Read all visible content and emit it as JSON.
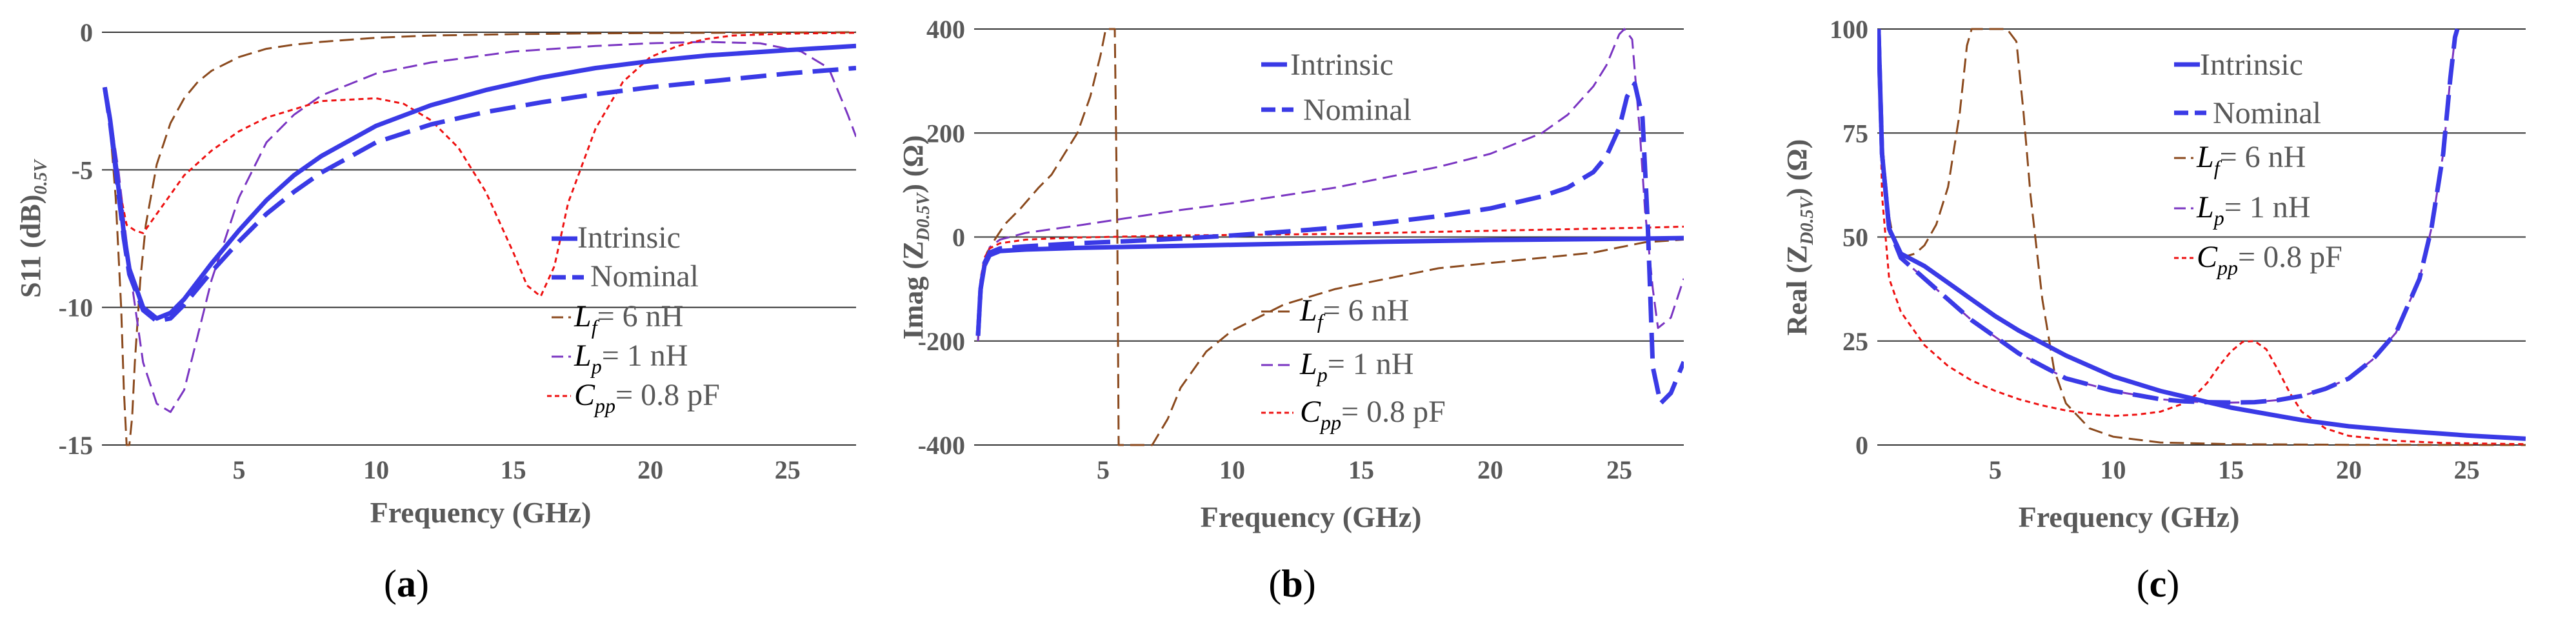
{
  "figure": {
    "colors": {
      "intrinsic": "#3a3ae6",
      "nominal": "#3a3ae6",
      "lf": "#8b4a1e",
      "lp": "#7a35c2",
      "cpp": "#ee1111",
      "grid": "#333333",
      "text": "#595959",
      "caption": "#000000"
    },
    "legend_labels": {
      "intrinsic": "Intrinsic",
      "nominal": "Nominal",
      "lf_sym": "L",
      "lf_sub": "f",
      "lf_val": "= 6 nH",
      "lp_sym": "L",
      "lp_sub": "p",
      "lp_val": "= 1 nH",
      "cpp_sym": "C",
      "cpp_sub": "pp",
      "cpp_val": "= 0.8 pF"
    }
  },
  "chart_data": [
    {
      "id": "a",
      "type": "line",
      "caption": "(a)",
      "caption_open": "(",
      "caption_letter": "a",
      "caption_close": ")",
      "xlabel": "Frequency (GHz)",
      "ylabel_main": "S11 (dB)",
      "ylabel_sub": "0.5V",
      "xlim": [
        0,
        27.5
      ],
      "ylim": [
        -15,
        0
      ],
      "xticks": [
        5,
        10,
        15,
        20,
        25
      ],
      "yticks": [
        0,
        -5,
        -10,
        -15
      ],
      "series": [
        {
          "key": "lf",
          "name": "Lf = 6 nH",
          "dash": "long",
          "width": 3,
          "x": [
            0.1,
            0.3,
            0.5,
            0.7,
            0.8,
            0.9,
            1.0,
            1.1,
            1.2,
            1.4,
            1.6,
            2.0,
            2.5,
            3,
            3.5,
            4,
            5,
            6,
            7,
            8,
            10,
            12,
            15,
            18,
            20,
            22,
            25,
            27.5
          ],
          "y": [
            -2,
            -3.5,
            -6,
            -10,
            -13,
            -15,
            -15,
            -14,
            -12,
            -9,
            -7,
            -4.8,
            -3.3,
            -2.4,
            -1.8,
            -1.4,
            -0.9,
            -0.6,
            -0.45,
            -0.35,
            -0.2,
            -0.12,
            -0.07,
            -0.04,
            -0.03,
            -0.02,
            -0.01,
            0
          ]
        },
        {
          "key": "lp",
          "name": "Lp = 1 nH",
          "dash": "long",
          "width": 3,
          "x": [
            0.1,
            0.3,
            0.6,
            1.0,
            1.5,
            2.0,
            2.5,
            3.0,
            3.5,
            4,
            5,
            6,
            7,
            8,
            10,
            12,
            15,
            18,
            20,
            22,
            24,
            25.5,
            26.5,
            27.2,
            27.5
          ],
          "y": [
            -2,
            -3,
            -5,
            -8.5,
            -12,
            -13.5,
            -13.8,
            -13,
            -11,
            -9,
            -6,
            -4,
            -3,
            -2.3,
            -1.5,
            -1.1,
            -0.7,
            -0.5,
            -0.4,
            -0.35,
            -0.4,
            -0.7,
            -1.3,
            -3,
            -3.8
          ]
        },
        {
          "key": "cpp",
          "name": "Cpp = 0.8 pF",
          "dash": "short",
          "width": 3,
          "x": [
            0.1,
            0.3,
            0.6,
            0.9,
            1.2,
            1.5,
            2.0,
            3,
            4,
            5,
            6,
            8,
            10,
            11,
            12,
            13,
            14,
            15,
            15.5,
            16,
            16.5,
            17,
            18,
            19,
            20,
            21,
            22,
            23,
            25,
            27.5
          ],
          "y": [
            -2,
            -3.5,
            -5.5,
            -7,
            -7.2,
            -7.3,
            -6.6,
            -5.2,
            -4.3,
            -3.6,
            -3.1,
            -2.5,
            -2.4,
            -2.6,
            -3.2,
            -4.2,
            -5.8,
            -8,
            -9.2,
            -9.6,
            -8.5,
            -6.2,
            -3.5,
            -1.8,
            -0.9,
            -0.5,
            -0.25,
            -0.12,
            -0.05,
            -0.02
          ]
        },
        {
          "key": "nominal",
          "name": "Nominal",
          "dash": "heavy",
          "width": 7,
          "x": [
            0.1,
            0.3,
            0.5,
            0.8,
            1.0,
            1.5,
            2.0,
            2.5,
            3,
            4,
            5,
            6,
            7,
            8,
            10,
            12,
            14,
            16,
            18,
            20,
            22,
            25,
            27.5
          ],
          "y": [
            -2,
            -3.3,
            -5,
            -7.5,
            -8.8,
            -10.1,
            -10.5,
            -10.4,
            -9.9,
            -8.7,
            -7.6,
            -6.6,
            -5.8,
            -5.1,
            -4,
            -3.35,
            -2.9,
            -2.55,
            -2.25,
            -2,
            -1.8,
            -1.5,
            -1.3
          ]
        },
        {
          "key": "intrinsic",
          "name": "Intrinsic",
          "dash": "solid",
          "width": 7,
          "x": [
            0.1,
            0.3,
            0.5,
            0.8,
            1.0,
            1.5,
            2.0,
            2.5,
            3,
            4,
            5,
            6,
            7,
            8,
            10,
            12,
            14,
            16,
            18,
            20,
            22,
            25,
            27.5
          ],
          "y": [
            -2,
            -3.2,
            -4.8,
            -7.3,
            -8.6,
            -10,
            -10.4,
            -10.2,
            -9.7,
            -8.4,
            -7.2,
            -6.1,
            -5.2,
            -4.5,
            -3.4,
            -2.65,
            -2.1,
            -1.65,
            -1.3,
            -1.05,
            -0.85,
            -0.65,
            -0.5
          ]
        }
      ]
    },
    {
      "id": "b",
      "type": "line",
      "caption": "(b)",
      "caption_open": "(",
      "caption_letter": "b",
      "caption_close": ")",
      "xlabel": "Frequency (GHz)",
      "ylabel_main": "Imag (Z",
      "ylabel_sub": "D0.5V",
      "ylabel_tail": ") (Ω)",
      "xlim": [
        0,
        27.5
      ],
      "ylim": [
        -400,
        400
      ],
      "xticks": [
        5,
        10,
        15,
        20,
        25
      ],
      "yticks": [
        400,
        200,
        0,
        -200,
        -400
      ],
      "series": [
        {
          "key": "lf",
          "name": "Lf = 6 nH",
          "dash": "long",
          "width": 3,
          "x": [
            0.15,
            0.2,
            0.3,
            0.5,
            0.8,
            1.2,
            1.8,
            2.5,
            3,
            3.5,
            4,
            4.5,
            4.9,
            5.1,
            5.3,
            5.45,
            5.55,
            5.6,
            5.7,
            6,
            6.5,
            6.9,
            7.5,
            8,
            9,
            10,
            12,
            14,
            16,
            18,
            20,
            22,
            24,
            25,
            26,
            27.5
          ],
          "y": [
            -200,
            -150,
            -80,
            -30,
            -5,
            25,
            55,
            95,
            120,
            160,
            200,
            270,
            350,
            400,
            400,
            400,
            0,
            -400,
            -400,
            -400,
            -400,
            -400,
            -350,
            -290,
            -220,
            -180,
            -130,
            -100,
            -80,
            -60,
            -50,
            -40,
            -30,
            -20,
            -10,
            -5
          ]
        },
        {
          "key": "lp",
          "name": "Lp = 1 nH",
          "dash": "long",
          "width": 3,
          "x": [
            0.15,
            0.25,
            0.4,
            0.6,
            1,
            2,
            4,
            6,
            8,
            10,
            12,
            14,
            16,
            18,
            20,
            22,
            23,
            24,
            24.5,
            25,
            25.2,
            25.5,
            25.8,
            26,
            26.3,
            26.5,
            27,
            27.5
          ],
          "y": [
            -200,
            -120,
            -60,
            -20,
            -5,
            8,
            22,
            37,
            52,
            65,
            80,
            95,
            115,
            135,
            160,
            200,
            235,
            290,
            330,
            390,
            400,
            380,
            200,
            50,
            -100,
            -175,
            -155,
            -80
          ]
        },
        {
          "key": "cpp",
          "name": "Cpp = 0.8 pF",
          "dash": "short",
          "width": 3,
          "x": [
            0.15,
            0.25,
            0.4,
            0.6,
            1,
            2,
            4,
            6,
            8,
            10,
            12,
            14,
            16,
            18,
            20,
            22,
            24,
            26,
            27.5
          ],
          "y": [
            -160,
            -80,
            -40,
            -22,
            -12,
            -5,
            -1,
            1,
            3,
            4,
            5,
            6,
            8,
            10,
            12,
            14,
            16,
            18,
            20
          ]
        },
        {
          "key": "nominal",
          "name": "Nominal",
          "dash": "heavy",
          "width": 7,
          "x": [
            0.15,
            0.25,
            0.4,
            0.6,
            1,
            2,
            4,
            6,
            8,
            10,
            12,
            14,
            16,
            18,
            20,
            22,
            23,
            24,
            24.5,
            25,
            25.3,
            25.6,
            25.9,
            26.1,
            26.3,
            26.6,
            27,
            27.5
          ],
          "y": [
            -190,
            -100,
            -50,
            -30,
            -22,
            -18,
            -12,
            -8,
            -3,
            3,
            10,
            18,
            28,
            40,
            55,
            78,
            95,
            125,
            155,
            210,
            270,
            295,
            230,
            30,
            -250,
            -320,
            -300,
            -240
          ]
        },
        {
          "key": "intrinsic",
          "name": "Intrinsic",
          "dash": "solid",
          "width": 7,
          "x": [
            0.15,
            0.25,
            0.4,
            0.6,
            1,
            2,
            4,
            6,
            8,
            10,
            12,
            14,
            16,
            18,
            20,
            22,
            24,
            26,
            27.5
          ],
          "y": [
            -190,
            -100,
            -55,
            -35,
            -27,
            -24,
            -21,
            -19,
            -17,
            -15,
            -13,
            -11,
            -9,
            -7.5,
            -6,
            -5,
            -4,
            -3,
            -2
          ]
        }
      ]
    },
    {
      "id": "c",
      "type": "line",
      "caption": "(c)",
      "caption_open": "(",
      "caption_letter": "c",
      "caption_close": ")",
      "xlabel": "Frequency (GHz)",
      "ylabel_main": "Real (Z",
      "ylabel_sub": "D0.5V",
      "ylabel_tail": ") (Ω)",
      "xlim": [
        0,
        27.5
      ],
      "ylim": [
        0,
        100
      ],
      "xticks": [
        5,
        10,
        15,
        20,
        25
      ],
      "yticks": [
        100,
        75,
        50,
        25,
        0
      ],
      "series": [
        {
          "key": "lf",
          "name": "Lf = 6 nH",
          "dash": "long",
          "width": 3,
          "x": [
            0.05,
            0.2,
            0.4,
            0.6,
            0.8,
            1.0,
            1.3,
            1.6,
            2.0,
            2.5,
            3,
            3.5,
            3.8,
            4.0,
            5.5,
            5.9,
            6.2,
            6.5,
            7,
            7.5,
            8,
            9,
            10,
            12,
            15,
            20,
            27.5
          ],
          "y": [
            100,
            75,
            58,
            52,
            48,
            46,
            45.5,
            46,
            48,
            53,
            62,
            80,
            96,
            100,
            100,
            97,
            80,
            60,
            35,
            18,
            10,
            4,
            2,
            0.6,
            0.2,
            0.05,
            0
          ]
        },
        {
          "key": "lp",
          "name": "Lp = 1 nH",
          "dash": "long",
          "width": 3,
          "x": [
            0.05,
            0.2,
            0.5,
            1,
            2,
            3,
            4,
            5,
            6,
            7,
            8,
            10,
            12,
            13,
            14,
            15,
            16,
            17,
            18,
            19,
            20,
            21,
            22,
            23,
            23.5,
            24,
            24.3,
            24.5,
            24.6
          ],
          "y": [
            100,
            70,
            52,
            45,
            40,
            35,
            30,
            26,
            22,
            19,
            16,
            13,
            11,
            10.5,
            10.3,
            10.2,
            10.3,
            10.8,
            11.8,
            13.5,
            16,
            20.5,
            27,
            40,
            52,
            70,
            88,
            98,
            100
          ]
        },
        {
          "key": "cpp",
          "name": "Cpp = 0.8 pF",
          "dash": "short",
          "width": 3,
          "x": [
            0.05,
            0.2,
            0.5,
            1,
            2,
            3,
            4,
            5,
            6,
            7,
            8,
            9,
            10,
            11,
            12,
            13,
            13.5,
            14,
            14.5,
            15,
            15.5,
            16,
            16.5,
            17,
            17.5,
            18,
            19,
            20,
            22,
            24,
            27.5
          ],
          "y": [
            100,
            60,
            40,
            32,
            24,
            19,
            15.5,
            13,
            11,
            9.5,
            8.3,
            7.5,
            7,
            7.3,
            8,
            10,
            12,
            15,
            19,
            22.5,
            24.8,
            25,
            23,
            18,
            12.5,
            8,
            4,
            2.2,
            1,
            0.5,
            0.2
          ]
        },
        {
          "key": "nominal",
          "name": "Nominal",
          "dash": "heavy",
          "width": 7,
          "x": [
            0.05,
            0.2,
            0.5,
            1,
            2,
            3,
            4,
            5,
            6,
            7,
            8,
            10,
            12,
            13,
            14,
            15,
            16,
            17,
            18,
            19,
            20,
            21,
            22,
            23,
            23.5,
            24,
            24.3,
            24.5,
            24.6
          ],
          "y": [
            100,
            70,
            52,
            45,
            40,
            35,
            30,
            26,
            22,
            19,
            16,
            13,
            11,
            10.5,
            10.3,
            10.2,
            10.3,
            10.8,
            11.8,
            13.5,
            16,
            20.5,
            27,
            40,
            52,
            70,
            88,
            98,
            100
          ]
        },
        {
          "key": "intrinsic",
          "name": "Intrinsic",
          "dash": "solid",
          "width": 7,
          "x": [
            0.05,
            0.2,
            0.5,
            1,
            2,
            3,
            4,
            5,
            6,
            8,
            10,
            12,
            15,
            18,
            20,
            22,
            25,
            27.5
          ],
          "y": [
            100,
            70,
            52,
            46,
            43,
            39,
            35,
            31,
            27.5,
            21.5,
            16.5,
            13,
            9,
            6,
            4.5,
            3.5,
            2.3,
            1.5
          ]
        }
      ]
    }
  ]
}
